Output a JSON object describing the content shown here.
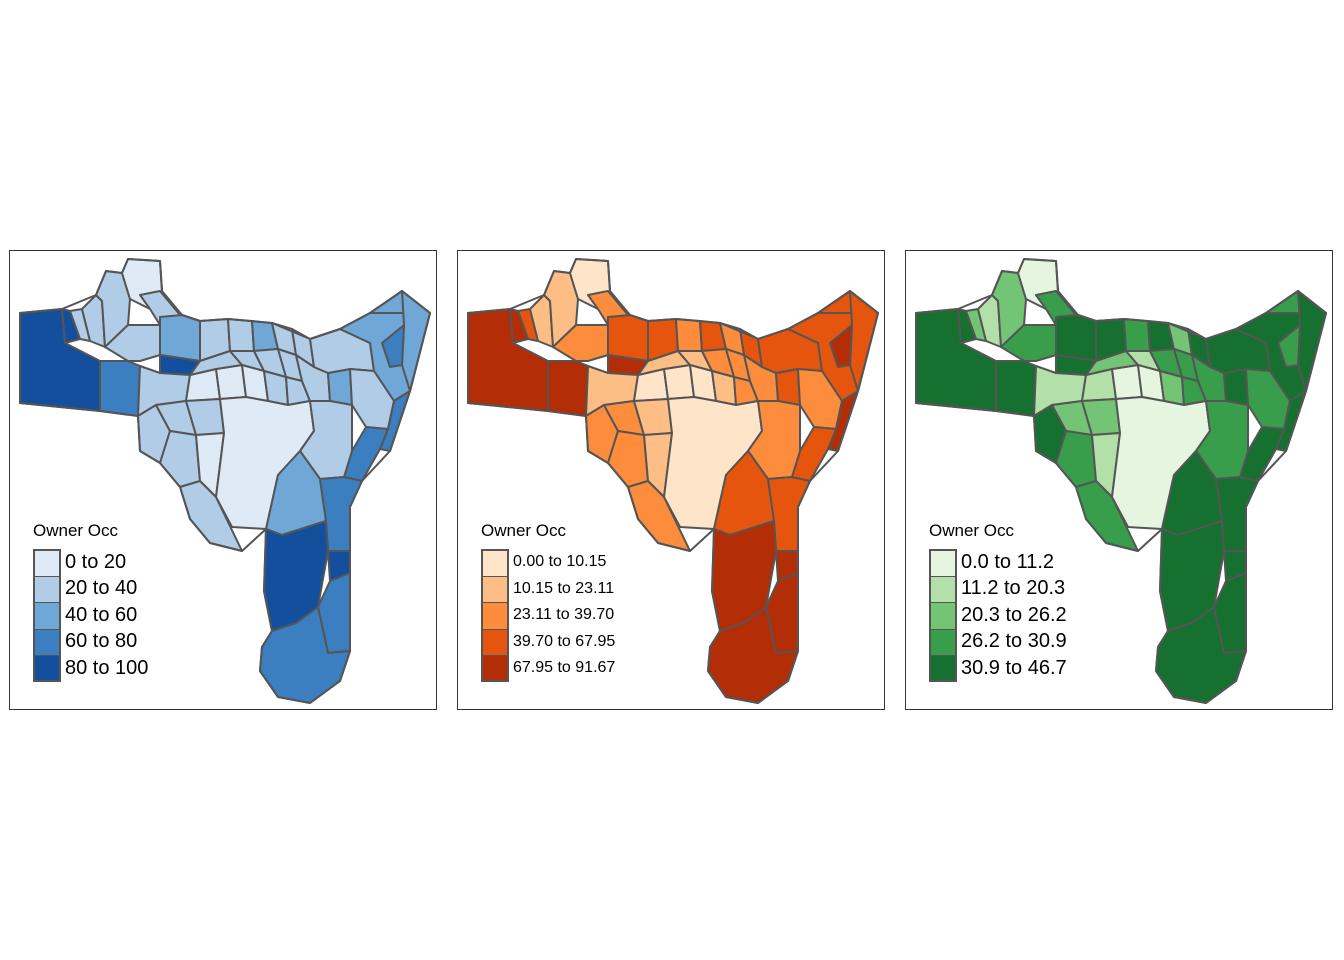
{
  "panels": [
    {
      "legend_title": "Owner Occ",
      "palette": [
        "#deebf7",
        "#b0cce6",
        "#6fa8d6",
        "#3b7fc0",
        "#144f9d"
      ],
      "labels": [
        "0 to 20",
        "20 to 40",
        "40 to 60",
        "60 to 80",
        "80 to 100"
      ],
      "label_size": "big"
    },
    {
      "legend_title": "Owner Occ",
      "palette": [
        "#fee4c8",
        "#fdbe85",
        "#fd8d3c",
        "#e6550d",
        "#b32d06"
      ],
      "labels": [
        "0.00 to 10.15",
        "10.15 to 23.11",
        "23.11 to 39.70",
        "39.70 to 67.95",
        "67.95 to 91.67"
      ],
      "label_size": "small"
    },
    {
      "legend_title": "Owner Occ",
      "palette": [
        "#e5f5e0",
        "#b2e0a8",
        "#74c476",
        "#389e4c",
        "#16702f"
      ],
      "labels": [
        "0.0 to 11.2",
        "11.2 to 20.3",
        "20.3 to 26.2",
        "26.2 to 30.9",
        "30.9 to 46.7"
      ],
      "label_size": "big"
    }
  ]
}
